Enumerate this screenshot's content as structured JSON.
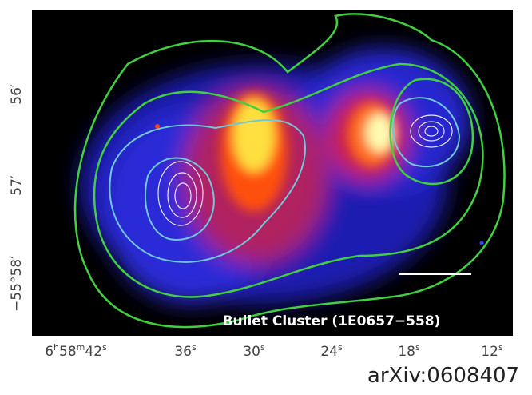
{
  "figure": {
    "x_ticks": [
      [
        "6",
        "h",
        "58",
        "m",
        "42",
        "s"
      ],
      [
        "36",
        "s"
      ],
      [
        "30",
        "s"
      ],
      [
        "24",
        "s"
      ],
      [
        "18",
        "s"
      ],
      [
        "12",
        "s"
      ]
    ],
    "y_ticks": [
      "56′",
      "57′",
      "−55°58′"
    ],
    "caption": "Bullet Cluster (1E0657−558)",
    "source": "arXiv:0608407"
  }
}
